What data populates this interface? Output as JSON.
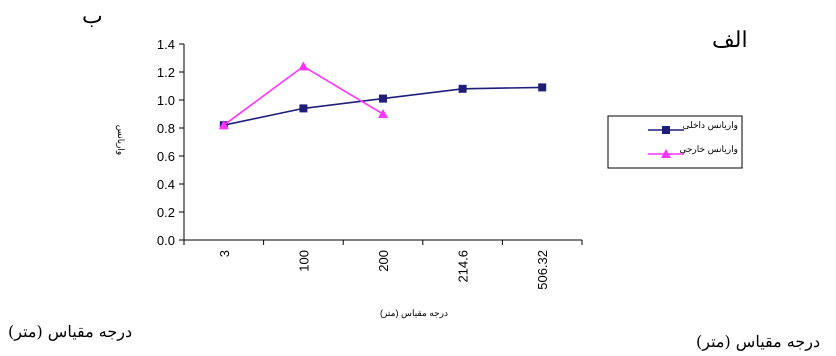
{
  "labels": {
    "top_left": "ب",
    "top_right": "الف",
    "bottom_left": "درجه مقیاس (متر)",
    "bottom_right": "درجه مقیاس (متر)"
  },
  "chart_data": {
    "type": "line",
    "categories": [
      "3",
      "100",
      "200",
      "214.6",
      "506.32"
    ],
    "ylim": [
      0.0,
      1.4
    ],
    "yticks": [
      "0.0",
      "0.2",
      "0.4",
      "0.6",
      "0.8",
      "1.0",
      "1.2",
      "1.4"
    ],
    "xlabel": "درجه مقیاس (متر)",
    "ylabel": "واریانس",
    "grid": false,
    "legend_position": "right",
    "series": [
      {
        "name": "واریانس داخلی",
        "color": "#1f1f7a",
        "marker": "square",
        "values": [
          0.82,
          0.94,
          1.01,
          1.08,
          1.09
        ]
      },
      {
        "name": "واریانس خارجی",
        "color": "#ff33ff",
        "marker": "triangle",
        "values": [
          0.82,
          1.24,
          0.9,
          null,
          null
        ]
      }
    ]
  }
}
